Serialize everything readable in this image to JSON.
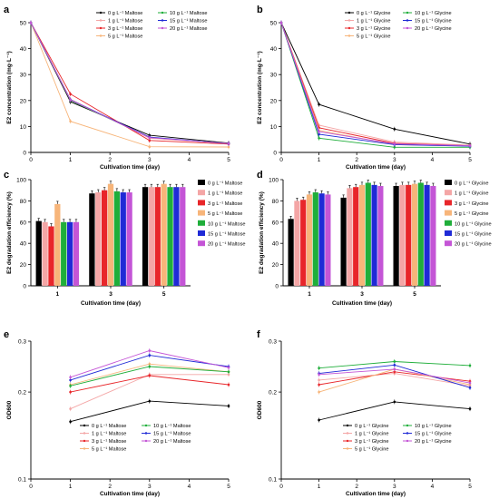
{
  "chart_data": [
    {
      "panel": "a",
      "type": "line",
      "ylabel": "E2 concentration (mg·L⁻¹)",
      "xlabel": "Cultivation time (day)",
      "xlim": [
        0,
        5
      ],
      "ylim": [
        0,
        50
      ],
      "xticks": [
        0,
        1,
        2,
        3,
        4,
        5
      ],
      "yticks": [
        0,
        10,
        20,
        30,
        40,
        50
      ],
      "x": [
        0,
        1,
        3,
        5
      ],
      "series": [
        {
          "name": "0 g L⁻¹ Maltose",
          "color": "#000000",
          "values": [
            50,
            19.5,
            6.6,
            3.6
          ]
        },
        {
          "name": "1 g L⁻¹ Maltose",
          "color": "#f4a6a6",
          "values": [
            50,
            20.5,
            5.5,
            3.5
          ]
        },
        {
          "name": "3 g L⁻¹ Maltose",
          "color": "#e8262a",
          "values": [
            50,
            22.5,
            4.6,
            3.2
          ]
        },
        {
          "name": "5 g L⁻¹ Maltose",
          "color": "#f7b57a",
          "values": [
            50,
            12.0,
            2.2,
            2.1
          ]
        },
        {
          "name": "10 g L⁻¹ Maltose",
          "color": "#1fae3a",
          "values": [
            50,
            20.0,
            5.8,
            3.4
          ]
        },
        {
          "name": "15 g L⁻¹ Maltose",
          "color": "#1f2ad6",
          "values": [
            50,
            20.3,
            5.9,
            3.4
          ]
        },
        {
          "name": "20 g L⁻¹ Maltose",
          "color": "#c455d6",
          "values": [
            50,
            20.2,
            5.7,
            3.4
          ]
        }
      ]
    },
    {
      "panel": "b",
      "type": "line",
      "ylabel": "E2 concentration (mg·L⁻¹)",
      "xlabel": "Cultivation time (day)",
      "xlim": [
        0,
        5
      ],
      "ylim": [
        0,
        50
      ],
      "xticks": [
        0,
        1,
        2,
        3,
        4,
        5
      ],
      "yticks": [
        0,
        10,
        20,
        30,
        40,
        50
      ],
      "x": [
        0,
        1,
        3,
        5
      ],
      "series": [
        {
          "name": "0 g L⁻¹ Glycine",
          "color": "#000000",
          "values": [
            50,
            18.5,
            9.0,
            3.2
          ]
        },
        {
          "name": "1 g L⁻¹ Glycine",
          "color": "#f4a6a6",
          "values": [
            50,
            10.5,
            4.0,
            2.8
          ]
        },
        {
          "name": "3 g L⁻¹ Glycine",
          "color": "#e8262a",
          "values": [
            50,
            9.5,
            3.5,
            2.6
          ]
        },
        {
          "name": "5 g L⁻¹ Glycine",
          "color": "#f7b57a",
          "values": [
            50,
            8.5,
            3.0,
            2.5
          ]
        },
        {
          "name": "10 g L⁻¹ Glycine",
          "color": "#1fae3a",
          "values": [
            50,
            5.5,
            2.0,
            2.0
          ]
        },
        {
          "name": "15 g L⁻¹ Glycine",
          "color": "#1f2ad6",
          "values": [
            50,
            7.0,
            3.0,
            2.4
          ]
        },
        {
          "name": "20 g L⁻¹ Glycine",
          "color": "#c455d6",
          "values": [
            50,
            8.0,
            3.3,
            2.6
          ]
        }
      ]
    },
    {
      "panel": "c",
      "type": "bar",
      "ylabel": "E2 degradation efficiency (%)",
      "xlabel": "Cultivation time (day)",
      "ylim": [
        0,
        100
      ],
      "yticks": [
        0,
        20,
        40,
        60,
        80,
        100
      ],
      "categories": [
        "1",
        "3",
        "5"
      ],
      "series": [
        {
          "name": "0 g L⁻¹ Maltose",
          "color": "#000000",
          "values": [
            61,
            87,
            93
          ]
        },
        {
          "name": "1 g L⁻¹ Maltose",
          "color": "#f4a6a6",
          "values": [
            60,
            88,
            93
          ]
        },
        {
          "name": "3 g L⁻¹ Maltose",
          "color": "#e8262a",
          "values": [
            56,
            90,
            93
          ]
        },
        {
          "name": "5 g L⁻¹ Maltose",
          "color": "#f7b57a",
          "values": [
            77,
            96,
            96
          ]
        },
        {
          "name": "10 g L⁻¹ Maltose",
          "color": "#1fae3a",
          "values": [
            60,
            89,
            93
          ]
        },
        {
          "name": "15 g L⁻¹ Maltose",
          "color": "#1f2ad6",
          "values": [
            60,
            88,
            93
          ]
        },
        {
          "name": "20 g L⁻¹ Maltose",
          "color": "#c455d6",
          "values": [
            60,
            88,
            93
          ]
        }
      ]
    },
    {
      "panel": "d",
      "type": "bar",
      "ylabel": "E2 degradation efficiency (%)",
      "xlabel": "Cultivation time (day)",
      "ylim": [
        0,
        100
      ],
      "yticks": [
        0,
        20,
        40,
        60,
        80,
        100
      ],
      "categories": [
        "1",
        "3",
        "5"
      ],
      "series": [
        {
          "name": "0 g L⁻¹ Glycine",
          "color": "#000000",
          "values": [
            63,
            83,
            94
          ]
        },
        {
          "name": "1 g L⁻¹ Glycine",
          "color": "#f4a6a6",
          "values": [
            80,
            92,
            95
          ]
        },
        {
          "name": "3 g L⁻¹ Glycine",
          "color": "#e8262a",
          "values": [
            81,
            93,
            95
          ]
        },
        {
          "name": "5 g L⁻¹ Glycine",
          "color": "#f7b57a",
          "values": [
            86,
            95,
            96
          ]
        },
        {
          "name": "10 g L⁻¹ Glycine",
          "color": "#1fae3a",
          "values": [
            88,
            97,
            97
          ]
        },
        {
          "name": "15 g L⁻¹ Glycine",
          "color": "#1f2ad6",
          "values": [
            87,
            95,
            95
          ]
        },
        {
          "name": "20 g L⁻¹ Glycine",
          "color": "#c455d6",
          "values": [
            86,
            94,
            94
          ]
        }
      ]
    },
    {
      "panel": "e",
      "type": "line",
      "ylabel": "OD600",
      "xlabel": "Cultivation time (day)",
      "xlim": [
        0,
        5
      ],
      "ylim": [
        0.1,
        0.3
      ],
      "yscale": "log",
      "xticks": [
        0,
        1,
        2,
        3,
        4,
        5
      ],
      "yticks": [
        0.1,
        0.2,
        0.3
      ],
      "x": [
        1,
        3,
        5
      ],
      "series": [
        {
          "name": "0 g L⁻¹ Maltose",
          "color": "#000000",
          "values": [
            0.158,
            0.186,
            0.179
          ]
        },
        {
          "name": "1 g L⁻¹ Maltose",
          "color": "#f4a6a6",
          "values": [
            0.175,
            0.23,
            0.23
          ]
        },
        {
          "name": "3 g L⁻¹ Maltose",
          "color": "#e8262a",
          "values": [
            0.2,
            0.228,
            0.212
          ]
        },
        {
          "name": "5 g L⁻¹ Maltose",
          "color": "#f7b57a",
          "values": [
            0.212,
            0.25,
            0.235
          ]
        },
        {
          "name": "10 g L⁻¹ Maltose",
          "color": "#1fae3a",
          "values": [
            0.21,
            0.245,
            0.235
          ]
        },
        {
          "name": "15 g L⁻¹ Maltose",
          "color": "#1f2ad6",
          "values": [
            0.22,
            0.268,
            0.245
          ]
        },
        {
          "name": "20 g L⁻¹ Maltose",
          "color": "#c455d6",
          "values": [
            0.225,
            0.278,
            0.243
          ]
        }
      ]
    },
    {
      "panel": "f",
      "type": "line",
      "ylabel": "OD600",
      "xlabel": "Cultivation time (day)",
      "xlim": [
        0,
        5
      ],
      "ylim": [
        0.1,
        0.3
      ],
      "yscale": "log",
      "xticks": [
        0,
        1,
        2,
        3,
        4,
        5
      ],
      "yticks": [
        0.1,
        0.2,
        0.3
      ],
      "x": [
        1,
        3,
        5
      ],
      "series": [
        {
          "name": "0 g L⁻¹ Glycine",
          "color": "#000000",
          "values": [
            0.16,
            0.185,
            0.175
          ]
        },
        {
          "name": "1 g L⁻¹ Glycine",
          "color": "#f4a6a6",
          "values": [
            0.22,
            0.232,
            0.21
          ]
        },
        {
          "name": "3 g L⁻¹ Glycine",
          "color": "#e8262a",
          "values": [
            0.212,
            0.235,
            0.218
          ]
        },
        {
          "name": "5 g L⁻¹ Glycine",
          "color": "#f7b57a",
          "values": [
            0.2,
            0.24,
            0.212
          ]
        },
        {
          "name": "10 g L⁻¹ Glycine",
          "color": "#1fae3a",
          "values": [
            0.242,
            0.255,
            0.247
          ]
        },
        {
          "name": "15 g L⁻¹ Glycine",
          "color": "#1f2ad6",
          "values": [
            0.232,
            0.248,
            0.207
          ]
        },
        {
          "name": "20 g L⁻¹ Glycine",
          "color": "#c455d6",
          "values": [
            0.23,
            0.24,
            0.215
          ]
        }
      ]
    }
  ]
}
